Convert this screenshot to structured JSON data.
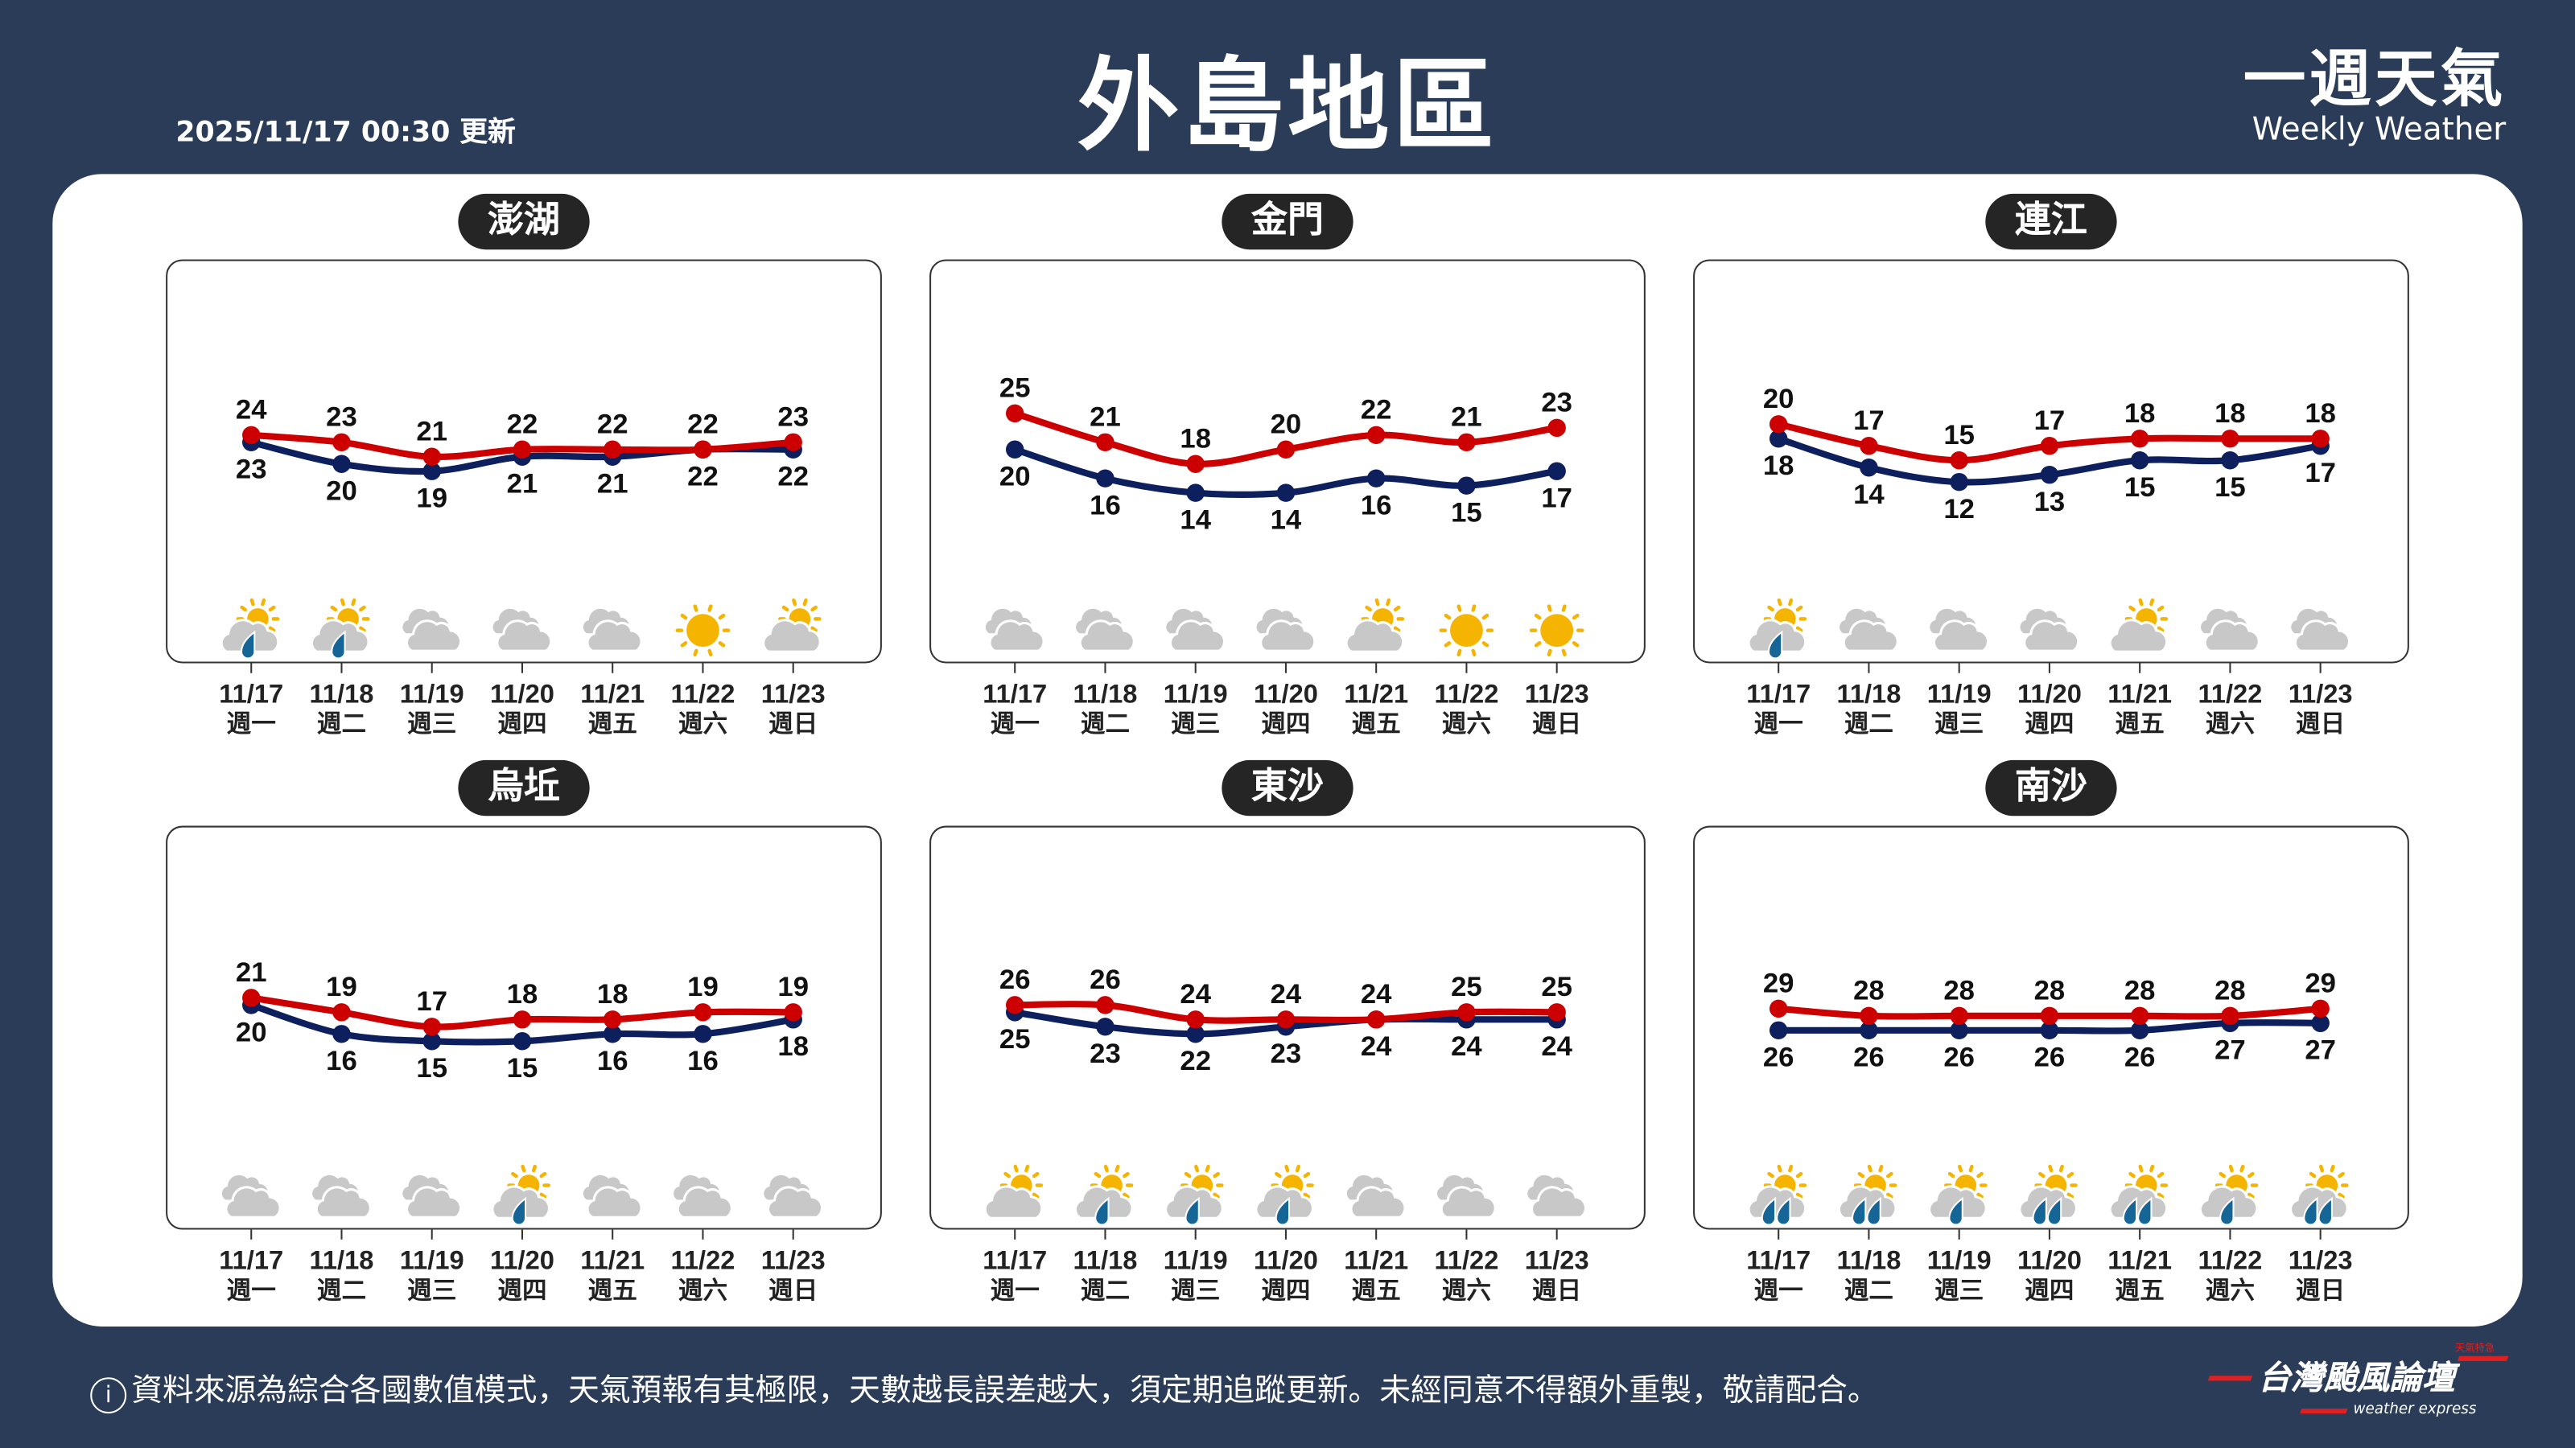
{
  "header": {
    "title": "外島地區",
    "updated": "2025/11/17 00:30 更新",
    "brand_zh": "一週天氣",
    "brand_en": "Weekly Weather"
  },
  "footer": {
    "info_icon": "i",
    "notice": "資料來源為綜合各國數值模式，天氣預報有其極限，天數越長誤差越大，須定期追蹤更新。未經同意不得額外重製，敬請配合。",
    "logo_name": "台灣颱風論壇",
    "logo_sub": "weather express",
    "logo_tag": "天氣特急"
  },
  "colors": {
    "background": "#2a3c57",
    "high": "#cc0000",
    "low": "#0d1f5c",
    "sun": "#f5b400",
    "cloud": "#c8c8c8",
    "rain": "#156596"
  },
  "dates": [
    "11/17",
    "11/18",
    "11/19",
    "11/20",
    "11/21",
    "11/22",
    "11/23"
  ],
  "weekdays": [
    "週一",
    "週二",
    "週三",
    "週四",
    "週五",
    "週六",
    "週日"
  ],
  "chart_data": [
    {
      "type": "line",
      "title": "澎湖",
      "categories": [
        "11/17",
        "11/18",
        "11/19",
        "11/20",
        "11/21",
        "11/22",
        "11/23"
      ],
      "series": [
        {
          "values": [
            24,
            23,
            21,
            22,
            22,
            22,
            23
          ]
        },
        {
          "values": [
            23,
            20,
            19,
            21,
            21,
            22,
            22
          ]
        }
      ],
      "icons": [
        "partly-cloudy-rain",
        "partly-cloudy-rain",
        "cloudy",
        "cloudy",
        "cloudy",
        "sunny",
        "partly-cloudy"
      ]
    },
    {
      "type": "line",
      "title": "金門",
      "categories": [
        "11/17",
        "11/18",
        "11/19",
        "11/20",
        "11/21",
        "11/22",
        "11/23"
      ],
      "series": [
        {
          "values": [
            25,
            21,
            18,
            20,
            22,
            21,
            23
          ]
        },
        {
          "values": [
            20,
            16,
            14,
            14,
            16,
            15,
            17
          ]
        }
      ],
      "icons": [
        "cloudy",
        "cloudy",
        "cloudy",
        "cloudy",
        "partly-cloudy",
        "sunny",
        "sunny"
      ]
    },
    {
      "type": "line",
      "title": "連江",
      "categories": [
        "11/17",
        "11/18",
        "11/19",
        "11/20",
        "11/21",
        "11/22",
        "11/23"
      ],
      "series": [
        {
          "values": [
            20,
            17,
            15,
            17,
            18,
            18,
            18
          ]
        },
        {
          "values": [
            18,
            14,
            12,
            13,
            15,
            15,
            17
          ]
        }
      ],
      "icons": [
        "partly-cloudy-rain",
        "cloudy",
        "cloudy",
        "cloudy",
        "partly-cloudy",
        "cloudy",
        "cloudy"
      ]
    },
    {
      "type": "line",
      "title": "烏坵",
      "categories": [
        "11/17",
        "11/18",
        "11/19",
        "11/20",
        "11/21",
        "11/22",
        "11/23"
      ],
      "series": [
        {
          "values": [
            21,
            19,
            17,
            18,
            18,
            19,
            19
          ]
        },
        {
          "values": [
            20,
            16,
            15,
            15,
            16,
            16,
            18
          ]
        }
      ],
      "icons": [
        "cloudy",
        "cloudy",
        "cloudy",
        "partly-cloudy-rain",
        "cloudy",
        "cloudy",
        "cloudy"
      ]
    },
    {
      "type": "line",
      "title": "東沙",
      "categories": [
        "11/17",
        "11/18",
        "11/19",
        "11/20",
        "11/21",
        "11/22",
        "11/23"
      ],
      "series": [
        {
          "values": [
            26,
            26,
            24,
            24,
            24,
            25,
            25
          ]
        },
        {
          "values": [
            25,
            23,
            22,
            23,
            24,
            24,
            24
          ]
        }
      ],
      "icons": [
        "partly-cloudy",
        "partly-cloudy-rain",
        "partly-cloudy-rain",
        "partly-cloudy-rain",
        "cloudy",
        "cloudy",
        "cloudy"
      ]
    },
    {
      "type": "line",
      "title": "南沙",
      "categories": [
        "11/17",
        "11/18",
        "11/19",
        "11/20",
        "11/21",
        "11/22",
        "11/23"
      ],
      "series": [
        {
          "values": [
            29,
            28,
            28,
            28,
            28,
            28,
            29
          ]
        },
        {
          "values": [
            26,
            26,
            26,
            26,
            26,
            27,
            27
          ]
        }
      ],
      "icons": [
        "partly-cloudy-heavy-rain",
        "partly-cloudy-heavy-rain",
        "partly-cloudy-rain",
        "partly-cloudy-heavy-rain",
        "partly-cloudy-heavy-rain",
        "partly-cloudy-rain",
        "partly-cloudy-heavy-rain"
      ]
    }
  ]
}
